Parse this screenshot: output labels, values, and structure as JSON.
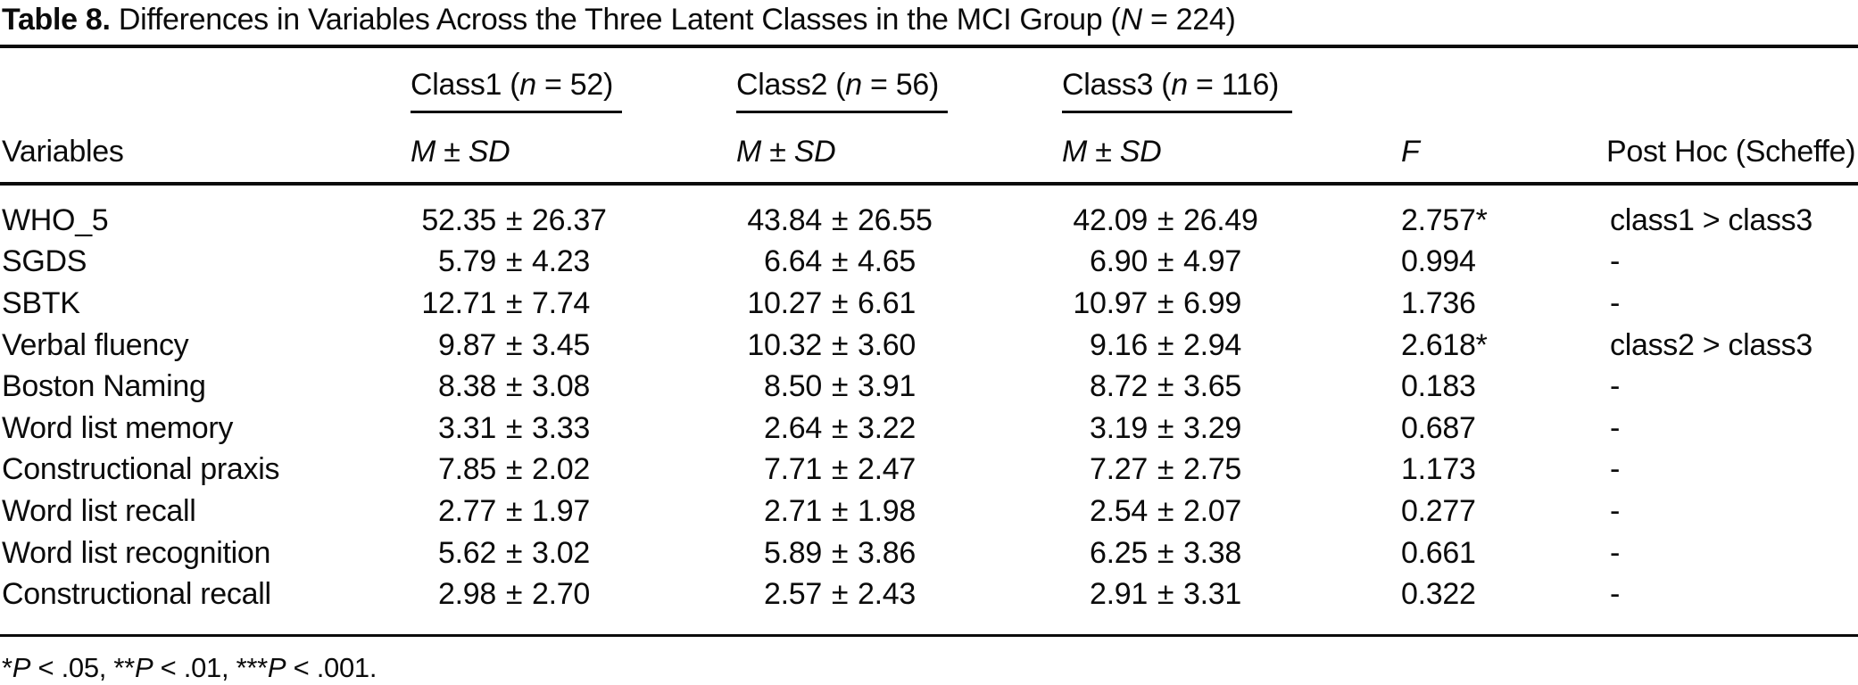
{
  "title": {
    "bold": "Table 8.",
    "mid": " Differences in Variables Across the Three Latent Classes in the MCI Group (",
    "n_label": "N",
    "tail": " = 224)"
  },
  "header": {
    "variables_label": "Variables",
    "classes": [
      {
        "prefix": "Class1 (",
        "n_label": "n",
        "suffix": " = 52)"
      },
      {
        "prefix": "Class2 (",
        "n_label": "n",
        "suffix": " = 56)"
      },
      {
        "prefix": "Class3 (",
        "n_label": "n",
        "suffix": " = 116)"
      }
    ],
    "msd": {
      "m": "M",
      "pm": "±",
      "sd": "SD"
    },
    "f_label": "F",
    "posthoc_label": "Post Hoc (Scheffe)"
  },
  "rows": [
    {
      "variable": "WHO_5",
      "class1": {
        "m": "52.35",
        "sd": "26.37"
      },
      "class2": {
        "m": "43.84",
        "sd": "26.55"
      },
      "class3": {
        "m": "42.09",
        "sd": "26.49"
      },
      "f": "2.757*",
      "posthoc": "class1 > class3"
    },
    {
      "variable": "SGDS",
      "class1": {
        "m": "5.79",
        "sd": "4.23"
      },
      "class2": {
        "m": "6.64",
        "sd": "4.65"
      },
      "class3": {
        "m": "6.90",
        "sd": "4.97"
      },
      "f": "0.994",
      "posthoc": "-"
    },
    {
      "variable": "SBTK",
      "class1": {
        "m": "12.71",
        "sd": "7.74"
      },
      "class2": {
        "m": "10.27",
        "sd": "6.61"
      },
      "class3": {
        "m": "10.97",
        "sd": "6.99"
      },
      "f": "1.736",
      "posthoc": "-"
    },
    {
      "variable": "Verbal fluency",
      "class1": {
        "m": "9.87",
        "sd": "3.45"
      },
      "class2": {
        "m": "10.32",
        "sd": "3.60"
      },
      "class3": {
        "m": "9.16",
        "sd": "2.94"
      },
      "f": "2.618*",
      "posthoc": "class2 > class3"
    },
    {
      "variable": "Boston Naming",
      "class1": {
        "m": "8.38",
        "sd": "3.08"
      },
      "class2": {
        "m": "8.50",
        "sd": "3.91"
      },
      "class3": {
        "m": "8.72",
        "sd": "3.65"
      },
      "f": "0.183",
      "posthoc": "-"
    },
    {
      "variable": "Word list memory",
      "class1": {
        "m": "3.31",
        "sd": "3.33"
      },
      "class2": {
        "m": "2.64",
        "sd": "3.22"
      },
      "class3": {
        "m": "3.19",
        "sd": "3.29"
      },
      "f": "0.687",
      "posthoc": "-"
    },
    {
      "variable": "Constructional praxis",
      "class1": {
        "m": "7.85",
        "sd": "2.02"
      },
      "class2": {
        "m": "7.71",
        "sd": "2.47"
      },
      "class3": {
        "m": "7.27",
        "sd": "2.75"
      },
      "f": "1.173",
      "posthoc": "-"
    },
    {
      "variable": "Word list recall",
      "class1": {
        "m": "2.77",
        "sd": "1.97"
      },
      "class2": {
        "m": "2.71",
        "sd": "1.98"
      },
      "class3": {
        "m": "2.54",
        "sd": "2.07"
      },
      "f": "0.277",
      "posthoc": "-"
    },
    {
      "variable": "Word list recognition",
      "class1": {
        "m": "5.62",
        "sd": "3.02"
      },
      "class2": {
        "m": "5.89",
        "sd": "3.86"
      },
      "class3": {
        "m": "6.25",
        "sd": "3.38"
      },
      "f": "0.661",
      "posthoc": "-"
    },
    {
      "variable": "Constructional recall",
      "class1": {
        "m": "2.98",
        "sd": "2.70"
      },
      "class2": {
        "m": "2.57",
        "sd": "2.43"
      },
      "class3": {
        "m": "2.91",
        "sd": "3.31"
      },
      "f": "0.322",
      "posthoc": "-"
    }
  ],
  "footnote": {
    "segments": [
      {
        "stars": "*",
        "p": "P",
        "rest": " < .05, "
      },
      {
        "stars": "**",
        "p": "P",
        "rest": " < .01, "
      },
      {
        "stars": "***",
        "p": "P",
        "rest": " < .001."
      }
    ]
  },
  "colors": {
    "text": "#0b0b0b",
    "background": "#ffffff",
    "rule": "#0b0b0b"
  }
}
